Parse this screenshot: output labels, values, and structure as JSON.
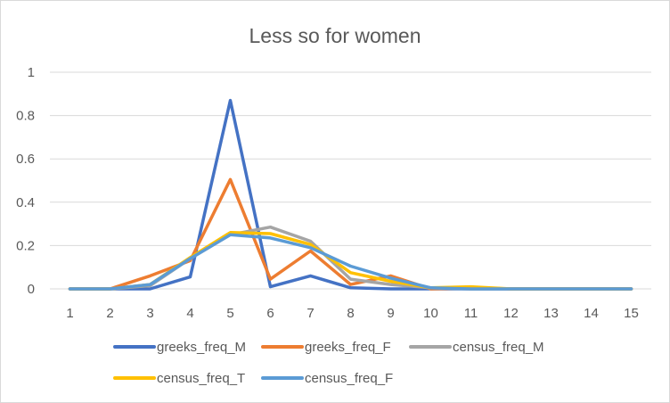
{
  "chart_data": {
    "type": "line",
    "title": "Less so for women",
    "xlabel": "",
    "ylabel": "",
    "x": [
      1,
      2,
      3,
      4,
      5,
      6,
      7,
      8,
      9,
      10,
      11,
      12,
      13,
      14,
      15
    ],
    "x_tick_labels": [
      "1",
      "2",
      "3",
      "4",
      "5",
      "6",
      "7",
      "8",
      "9",
      "10",
      "11",
      "12",
      "13",
      "14",
      "15"
    ],
    "ylim": [
      0,
      1
    ],
    "y_ticks": [
      0,
      0.2,
      0.4,
      0.6,
      0.8,
      1
    ],
    "y_tick_labels": [
      "0",
      "0.2",
      "0.4",
      "0.6",
      "0.8",
      "1"
    ],
    "grid": true,
    "legend_position": "bottom",
    "series": [
      {
        "name": "greeks_freq_M",
        "color": "#4472c4",
        "values": [
          0,
          0,
          0,
          0.055,
          0.87,
          0.01,
          0.06,
          0.005,
          0,
          0,
          0,
          0,
          0,
          0,
          0
        ]
      },
      {
        "name": "greeks_freq_F",
        "color": "#ed7d31",
        "values": [
          0,
          0,
          0.06,
          0.13,
          0.505,
          0.045,
          0.175,
          0.02,
          0.06,
          0,
          0.005,
          0,
          0,
          0,
          0
        ]
      },
      {
        "name": "census_freq_M",
        "color": "#a5a5a5",
        "values": [
          0,
          0,
          0.015,
          0.14,
          0.25,
          0.285,
          0.22,
          0.045,
          0.02,
          0.005,
          0,
          0,
          0,
          0,
          0
        ]
      },
      {
        "name": "census_freq_T",
        "color": "#ffc000",
        "values": [
          0,
          0,
          0.02,
          0.145,
          0.26,
          0.255,
          0.205,
          0.075,
          0.035,
          0.005,
          0.01,
          0,
          0,
          0,
          0
        ]
      },
      {
        "name": "census_freq_F",
        "color": "#5b9bd5",
        "values": [
          0,
          0,
          0.02,
          0.14,
          0.25,
          0.235,
          0.19,
          0.105,
          0.05,
          0.005,
          0,
          0,
          0,
          0,
          0
        ]
      }
    ]
  }
}
